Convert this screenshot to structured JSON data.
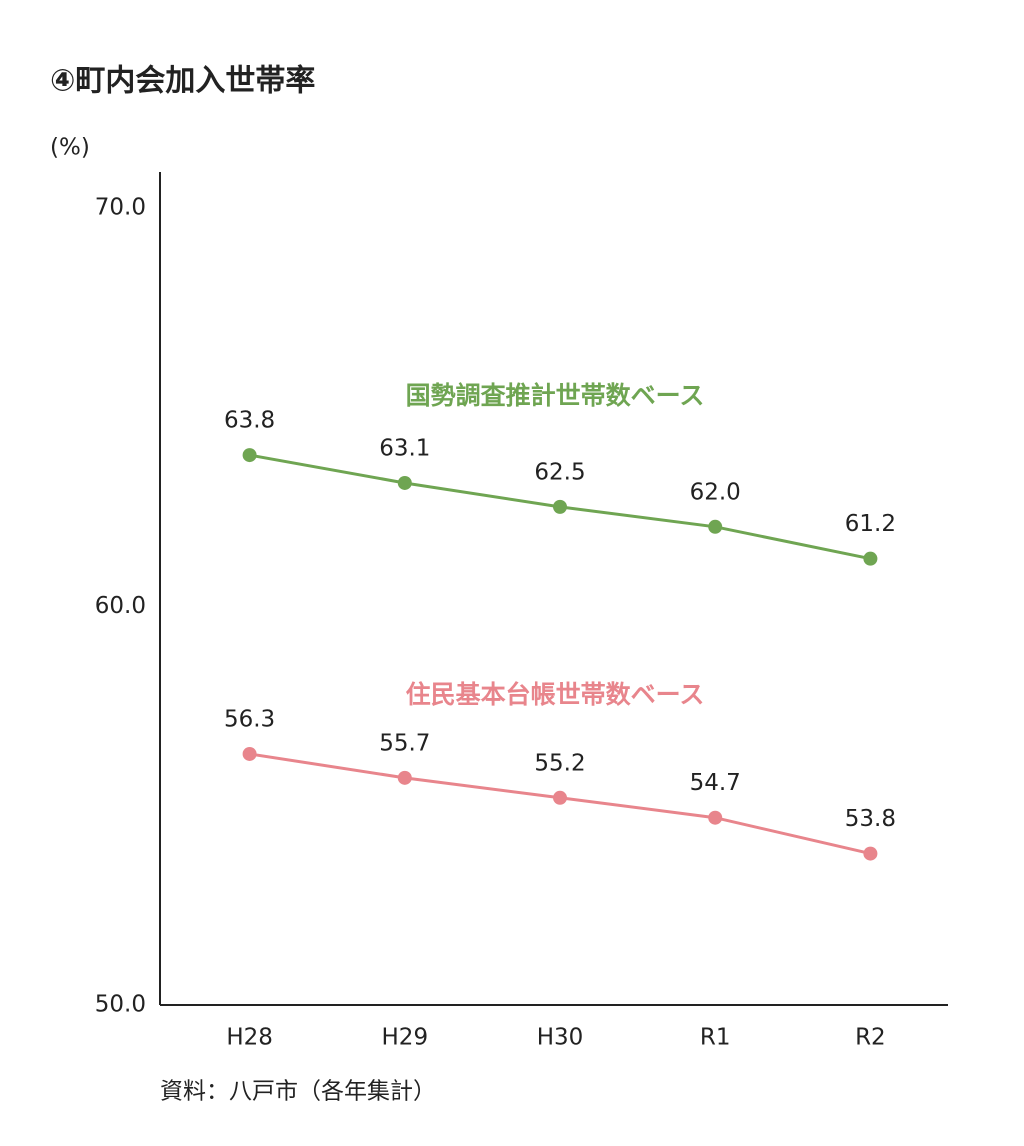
{
  "chart_data": {
    "type": "line",
    "title": "④町内会加入世帯率",
    "y_axis_label": "(%)",
    "source": "資料：八戸市（各年集計）",
    "categories": [
      "H28",
      "H29",
      "H30",
      "R1",
      "R2"
    ],
    "series": [
      {
        "name": "国勢調査推計世帯数ベース",
        "color": "#6fa552",
        "values": [
          63.8,
          63.1,
          62.5,
          62.0,
          61.2
        ],
        "value_labels": [
          "63.8",
          "63.1",
          "62.5",
          "62.0",
          "61.2"
        ]
      },
      {
        "name": "住民基本台帳世帯数ベース",
        "color": "#e8858c",
        "values": [
          56.3,
          55.7,
          55.2,
          54.7,
          53.8
        ]
      }
    ],
    "ylim": [
      50,
      70
    ],
    "yticks": [
      {
        "value": 50,
        "label": "50.0"
      },
      {
        "value": 60,
        "label": "60.0"
      },
      {
        "value": 70,
        "label": "70.0"
      }
    ],
    "grid": false
  }
}
